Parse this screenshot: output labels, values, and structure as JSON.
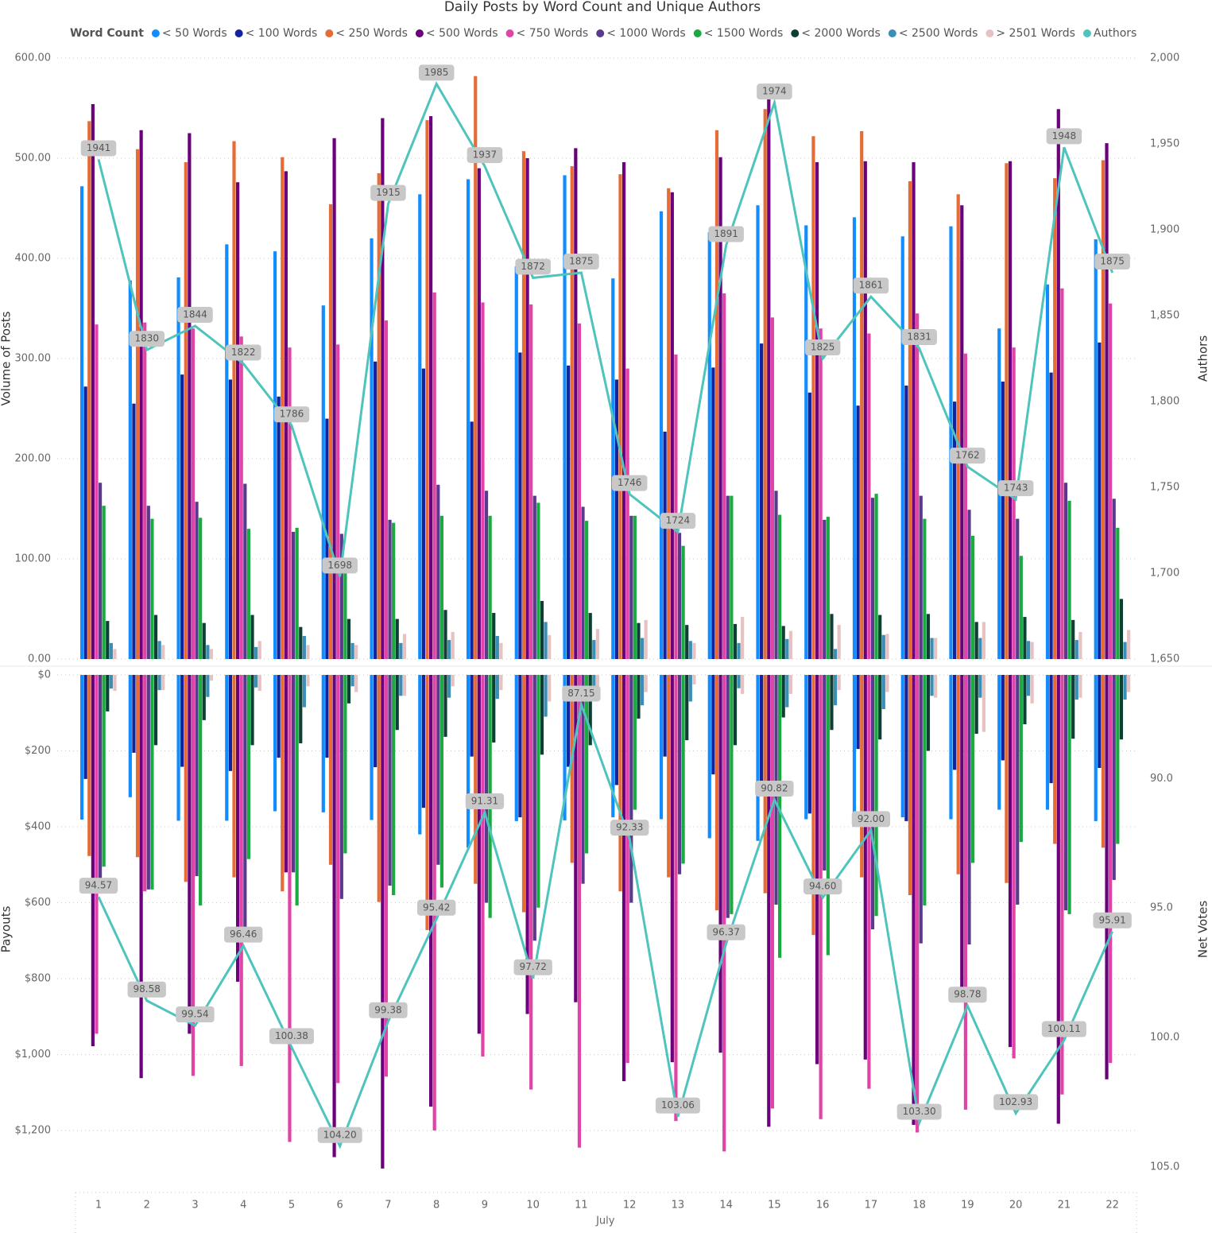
{
  "chart_data": [
    {
      "type": "bar",
      "title": "Daily Posts by Word Count and Unique Authors",
      "legend_title": "Word Count",
      "legend": "top",
      "grid": true,
      "y_label": "Volume of Posts",
      "y2_label": "Authors",
      "ylim": [
        0,
        600
      ],
      "yticks": [
        {
          "value": 0,
          "label": "0.00"
        },
        {
          "value": 100,
          "label": "100.00"
        },
        {
          "value": 200,
          "label": "200.00"
        },
        {
          "value": 300,
          "label": "300.00"
        },
        {
          "value": 400,
          "label": "400.00"
        },
        {
          "value": 500,
          "label": "500.00"
        },
        {
          "value": 600,
          "label": "600.00"
        }
      ],
      "y2lim": [
        1650,
        2000
      ],
      "y2ticks": [
        {
          "value": 1650,
          "label": "1,650"
        },
        {
          "value": 1700,
          "label": "1,700"
        },
        {
          "value": 1750,
          "label": "1,750"
        },
        {
          "value": 1800,
          "label": "1,800"
        },
        {
          "value": 1850,
          "label": "1,850"
        },
        {
          "value": 1900,
          "label": "1,900"
        },
        {
          "value": 1950,
          "label": "1,950"
        },
        {
          "value": 2000,
          "label": "2,000"
        }
      ],
      "series": [
        {
          "name": "< 50 Words",
          "color": "#118DFF",
          "values": [
            472,
            378,
            381,
            414,
            407,
            353,
            420,
            464,
            479,
            392,
            483,
            380,
            447,
            426,
            453,
            433,
            441,
            422,
            432,
            330,
            374,
            419
          ]
        },
        {
          "name": "< 100 Words",
          "color": "#12239E",
          "values": [
            272,
            255,
            284,
            279,
            262,
            240,
            297,
            290,
            237,
            306,
            293,
            279,
            227,
            291,
            315,
            266,
            253,
            273,
            257,
            277,
            286,
            316
          ]
        },
        {
          "name": "< 250 Words",
          "color": "#E66C37",
          "values": [
            537,
            509,
            496,
            517,
            501,
            454,
            485,
            538,
            582,
            507,
            492,
            484,
            470,
            528,
            549,
            522,
            527,
            477,
            464,
            495,
            480,
            498
          ]
        },
        {
          "name": "< 500 Words",
          "color": "#6B007B",
          "values": [
            554,
            528,
            525,
            476,
            487,
            520,
            540,
            542,
            490,
            500,
            510,
            496,
            466,
            501,
            567,
            496,
            497,
            496,
            453,
            497,
            549,
            515
          ]
        },
        {
          "name": "< 750 Words",
          "color": "#E044A7",
          "values": [
            334,
            336,
            330,
            322,
            311,
            314,
            338,
            366,
            356,
            354,
            335,
            290,
            304,
            365,
            341,
            330,
            325,
            345,
            305,
            311,
            370,
            355
          ]
        },
        {
          "name": "< 1000 Words",
          "color": "#5B3A8E",
          "values": [
            176,
            153,
            157,
            175,
            127,
            125,
            139,
            174,
            168,
            163,
            152,
            143,
            126,
            163,
            168,
            139,
            161,
            163,
            149,
            140,
            176,
            160
          ]
        },
        {
          "name": "< 1500 Words",
          "color": "#1AAB40",
          "values": [
            153,
            140,
            141,
            130,
            131,
            100,
            136,
            143,
            143,
            156,
            138,
            143,
            113,
            163,
            144,
            142,
            165,
            140,
            123,
            103,
            158,
            131
          ]
        },
        {
          "name": "< 2000 Words",
          "color": "#0E3F35",
          "values": [
            38,
            44,
            36,
            44,
            32,
            40,
            40,
            49,
            46,
            58,
            46,
            36,
            34,
            35,
            33,
            45,
            44,
            45,
            37,
            42,
            39,
            60
          ]
        },
        {
          "name": "< 2500 Words",
          "color": "#3A8FB7",
          "values": [
            16,
            18,
            14,
            12,
            23,
            16,
            16,
            19,
            23,
            37,
            19,
            21,
            18,
            16,
            20,
            10,
            24,
            21,
            21,
            18,
            19,
            17
          ]
        },
        {
          "name": "> 2501 Words",
          "color": "#E6C2C2",
          "values": [
            10,
            14,
            10,
            18,
            14,
            14,
            25,
            27,
            16,
            24,
            30,
            39,
            16,
            42,
            28,
            34,
            25,
            21,
            37,
            17,
            27,
            29
          ]
        },
        {
          "name": "Authors",
          "type": "line",
          "axis": "y2",
          "color": "#4EC4BC",
          "values": [
            1941,
            1830,
            1844,
            1822,
            1786,
            1698,
            1915,
            1985,
            1937,
            1872,
            1875,
            1746,
            1724,
            1891,
            1974,
            1825,
            1861,
            1831,
            1762,
            1743,
            1948,
            1875
          ]
        }
      ]
    },
    {
      "type": "bar",
      "reversed": true,
      "grid": true,
      "y_label": "Payouts",
      "y2_label": "Net Votes",
      "x_label": "July",
      "categories": [
        1,
        2,
        3,
        4,
        5,
        6,
        7,
        8,
        9,
        10,
        11,
        12,
        13,
        14,
        15,
        16,
        17,
        18,
        19,
        20,
        21,
        22
      ],
      "ylim": [
        0,
        1340
      ],
      "yticks": [
        {
          "value": 0,
          "label": "$0"
        },
        {
          "value": 200,
          "label": "$200"
        },
        {
          "value": 400,
          "label": "$400"
        },
        {
          "value": 600,
          "label": "$600"
        },
        {
          "value": 800,
          "label": "$800"
        },
        {
          "value": 1000,
          "label": "$1,000"
        },
        {
          "value": 1200,
          "label": "$1,200"
        }
      ],
      "y2lim": [
        86,
        105.65
      ],
      "y2ticks": [
        {
          "value": 90,
          "label": "90.0"
        },
        {
          "value": 95,
          "label": "95.0"
        },
        {
          "value": 100,
          "label": "100.0"
        },
        {
          "value": 105,
          "label": "105.0"
        }
      ],
      "series": [
        {
          "color": "#118DFF",
          "values": [
            381,
            322,
            384,
            384,
            359,
            362,
            382,
            420,
            455,
            385,
            383,
            375,
            380,
            430,
            437,
            380,
            400,
            375,
            380,
            355,
            355,
            385
          ]
        },
        {
          "color": "#12239E",
          "values": [
            274,
            205,
            242,
            253,
            218,
            218,
            243,
            350,
            215,
            375,
            242,
            290,
            215,
            262,
            285,
            365,
            195,
            385,
            250,
            225,
            285,
            245
          ]
        },
        {
          "color": "#E66C37",
          "values": [
            477,
            480,
            545,
            533,
            570,
            500,
            598,
            672,
            550,
            625,
            495,
            570,
            533,
            620,
            575,
            685,
            533,
            580,
            525,
            548,
            445,
            455
          ]
        },
        {
          "color": "#6B007B",
          "values": [
            978,
            1062,
            945,
            808,
            520,
            1270,
            1300,
            1137,
            945,
            893,
            862,
            1070,
            1020,
            995,
            1190,
            1025,
            1013,
            1185,
            855,
            980,
            1182,
            1065
          ]
        },
        {
          "color": "#E044A7",
          "values": [
            945,
            570,
            1056,
            1030,
            1230,
            1075,
            1058,
            1200,
            1005,
            1092,
            1245,
            1022,
            1175,
            1255,
            1142,
            1170,
            1090,
            1205,
            1145,
            1010,
            1105,
            1022
          ]
        },
        {
          "color": "#5B3A8E",
          "values": [
            547,
            565,
            530,
            672,
            520,
            590,
            555,
            500,
            600,
            700,
            550,
            600,
            525,
            640,
            605,
            515,
            670,
            707,
            710,
            605,
            620,
            540
          ]
        },
        {
          "color": "#1AAB40",
          "values": [
            505,
            565,
            607,
            485,
            607,
            470,
            580,
            560,
            640,
            613,
            470,
            355,
            497,
            630,
            745,
            738,
            635,
            607,
            495,
            440,
            630,
            445
          ]
        },
        {
          "color": "#0E3F35",
          "values": [
            96,
            185,
            119,
            185,
            180,
            75,
            145,
            163,
            178,
            210,
            185,
            115,
            172,
            185,
            112,
            145,
            170,
            200,
            155,
            130,
            168,
            170
          ]
        },
        {
          "color": "#3A8FB7",
          "values": [
            36,
            40,
            58,
            33,
            85,
            30,
            55,
            60,
            63,
            110,
            40,
            80,
            70,
            35,
            85,
            80,
            90,
            55,
            60,
            55,
            65,
            65
          ]
        },
        {
          "color": "#E6C2C2",
          "values": [
            42,
            40,
            15,
            42,
            30,
            45,
            55,
            30,
            40,
            70,
            68,
            45,
            25,
            50,
            50,
            40,
            45,
            60,
            150,
            75,
            60,
            45
          ]
        },
        {
          "type": "line",
          "axis": "y2",
          "color": "#4EC4BC",
          "values": [
            94.57,
            98.58,
            99.54,
            96.46,
            100.38,
            104.2,
            99.38,
            95.42,
            91.31,
            97.72,
            87.15,
            92.33,
            103.06,
            96.37,
            90.82,
            94.6,
            92,
            103.3,
            98.78,
            102.93,
            100.11,
            95.91
          ],
          "value_labels": [
            "94.57",
            "98.58",
            "99.54",
            "96.46",
            "100.38",
            "104.20",
            "99.38",
            "95.42",
            "91.31",
            "97.72",
            "87.15",
            "92.33",
            "103.06",
            "96.37",
            "90.82",
            "94.60",
            "92.00",
            "103.30",
            "98.78",
            "102.93",
            "100.11",
            "95.91"
          ]
        }
      ]
    }
  ]
}
